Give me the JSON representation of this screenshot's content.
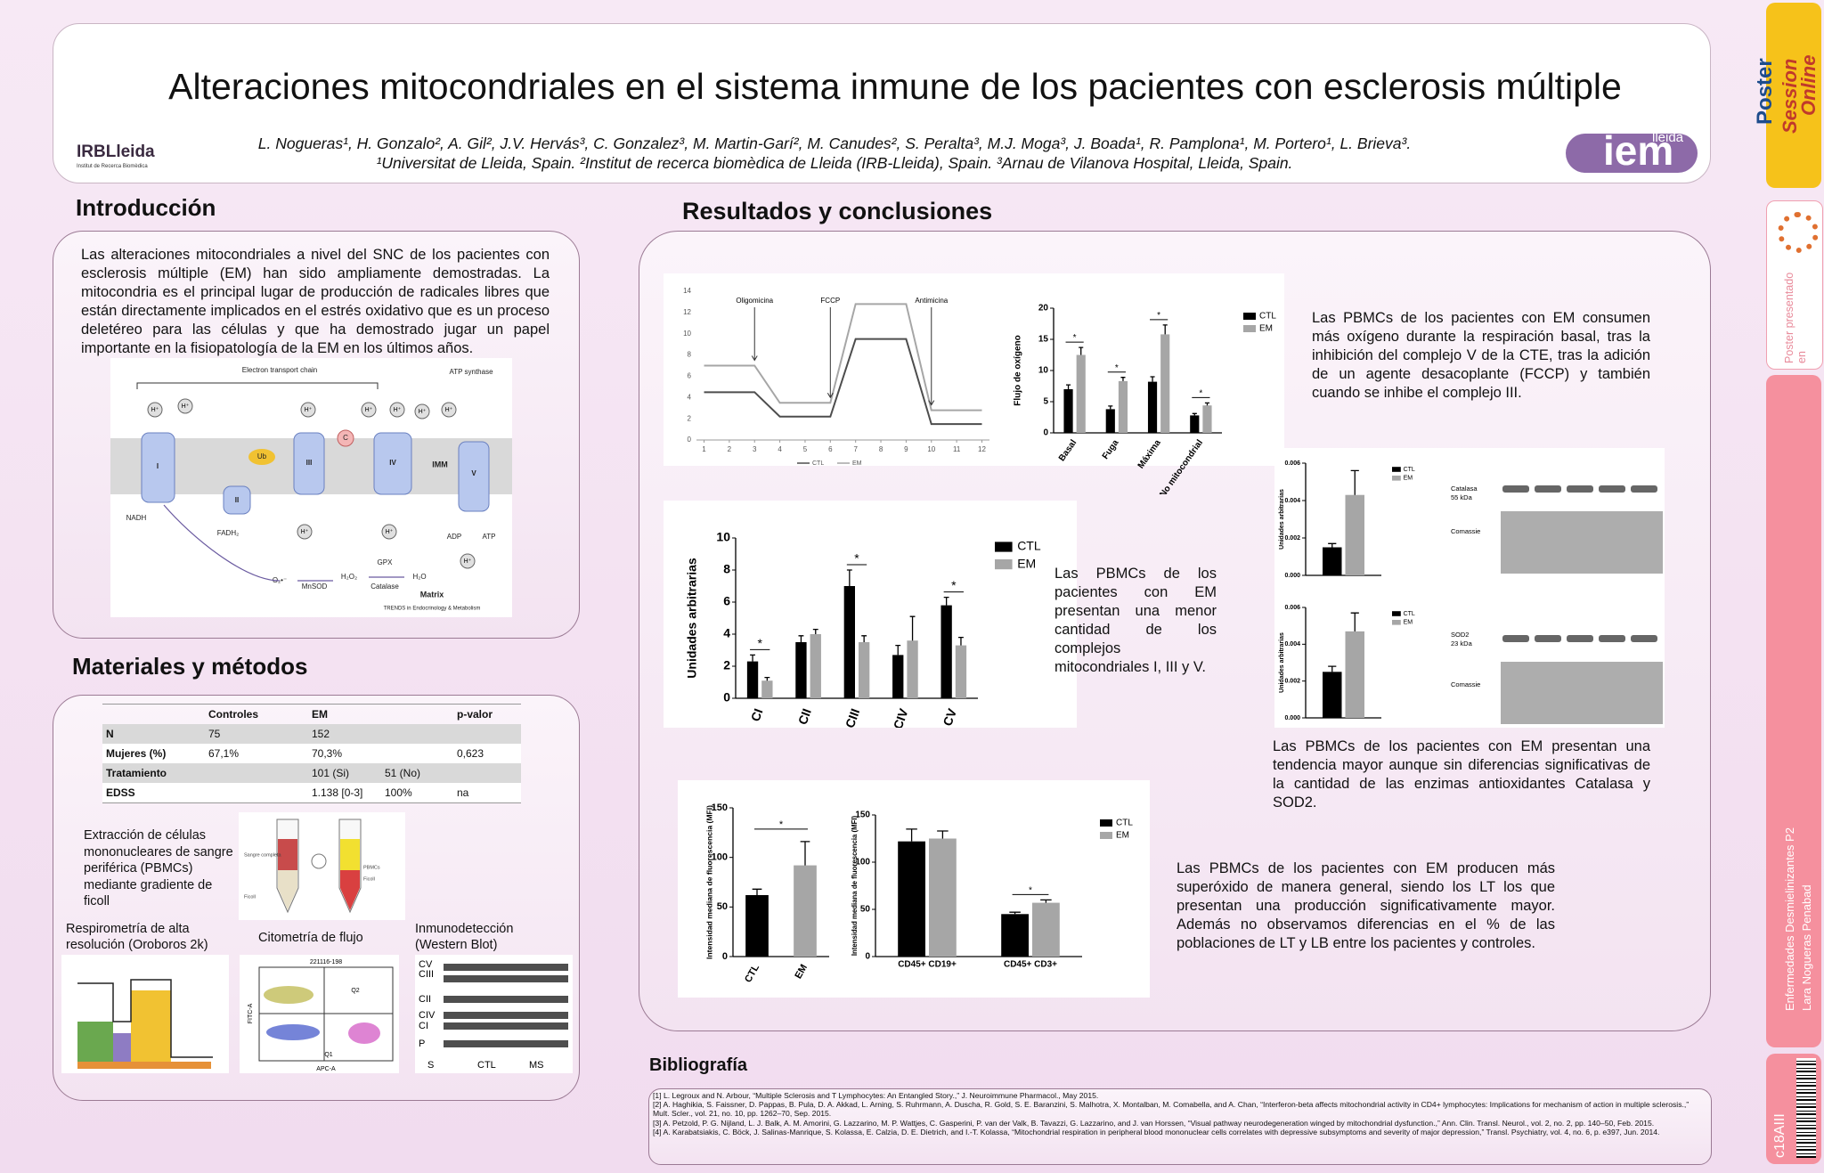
{
  "header": {
    "title": "Alteraciones mitocondriales en el sistema inmune de los pacientes con esclerosis múltiple",
    "authors": "L. Nogueras¹, H. Gonzalo², A. Gil², J.V. Hervás³, C. Gonzalez³, M. Martin-Garí², M. Canudes², S. Peralta³, M.J. Moga³, J. Boada¹, R. Pamplona¹, M. Portero¹, L. Brieva³.",
    "affiliations": "¹Universitat de Lleida, Spain. ²Institut de recerca biomèdica de Lleida (IRB-Lleida), Spain. ³Arnau de Vilanova Hospital, Lleida, Spain.",
    "logo_left": "IRBLleida",
    "logo_left_sub": "Institut de Recerca Biomèdica",
    "logo_right": "iem",
    "logo_right_sub": "lleida"
  },
  "intro": {
    "heading": "Introducción",
    "text": "Las alteraciones mitocondriales a nivel del SNC de los pacientes con esclerosis múltiple (EM) han sido ampliamente demostradas. La mitocondria es el principal lugar de producción de radicales libres que están directamente implicados en el estrés oxidativo que es un proceso deletéreo para las células y que ha demostrado jugar un papel importante en la fisiopatología de la EM en los últimos años.",
    "figure": {
      "labels": [
        "Electron transport chain",
        "ATP synthase",
        "I",
        "II",
        "III",
        "IV",
        "V",
        "Ub",
        "C",
        "IMM",
        "NADH",
        "FADH₂",
        "MnSOD",
        "Catalase",
        "GPX",
        "Matrix",
        "TRENDS in Endocrinology & Metabolism",
        "O₂•⁻",
        "H₂O₂",
        "H₂O",
        "ADP",
        "ATP"
      ],
      "proton": "H⁺"
    }
  },
  "methods": {
    "heading": "Materiales y métodos",
    "table": {
      "header": [
        null,
        "Controles",
        "EM",
        null,
        "p-valor"
      ],
      "rows": [
        [
          "N",
          "75",
          "152",
          null,
          null
        ],
        [
          "Mujeres (%)",
          "67,1%",
          "70,3%",
          null,
          "0,623"
        ],
        [
          "Tratamiento",
          null,
          "101 (Si)",
          "51 (No)",
          null
        ],
        [
          "EDSS",
          null,
          "1.138 [0-3]",
          "100%",
          "na"
        ]
      ]
    },
    "extraction": "Extracción de células mononucleares de sangre periférica (PBMCs) mediante gradiente de ficoll",
    "tube_labels": [
      "Sangre completa",
      "Ficoll",
      "PBMCs",
      "Ficoll"
    ],
    "respirometry": "Respirometría de alta resolución (Oroboros 2k)",
    "cytometry": "Citometría de flujo",
    "cytometry_labels": [
      "221116-198",
      "Q2",
      "Q1",
      "APC-A",
      "FITC-A"
    ],
    "western": "Inmunodetección (Western Blot)",
    "western_labels": [
      "CV",
      "CIII",
      "CII",
      "CIV",
      "CI",
      "P",
      "S",
      "CTL",
      "MS"
    ]
  },
  "results": {
    "heading": "Resultados y conclusiones",
    "texts": [
      "Las PBMCs de los pacientes con EM consumen más oxígeno durante la respiración basal, tras la inhibición del complejo V de la CTE, tras la adición de un agente desacoplante (FCCP) y también cuando se inhibe el complejo III.",
      "Las PBMCs de los pacientes con EM presentan una menor cantidad de los complejos mitocondriales I, III y V.",
      "Las PBMCs de los pacientes con EM presentan una tendencia mayor aunque sin diferencias significativas de la cantidad de las enzimas antioxidantes Catalasa y SOD2.",
      "Las PBMCs de los pacientes con EM producen más superóxido de manera general, siendo los LT los que presentan una producción significativamente mayor. Además no observamos diferencias en el % de las poblaciones de LT y LB entre los pacientes y controles."
    ],
    "blots": [
      {
        "labels": [
          "Catalasa",
          "55 kDa",
          "Comassie"
        ]
      },
      {
        "labels": [
          "SOD2",
          "23 kDa",
          "Comassie"
        ]
      }
    ],
    "charts": [
      {
        "type": "line",
        "x": [
          1,
          2,
          3,
          4,
          5,
          6,
          7,
          8,
          9,
          10,
          11,
          12
        ],
        "series": [
          {
            "name": "CTL",
            "color": "#4d4d4d",
            "values": [
              4.5,
              4.5,
              4.5,
              2.2,
              2.2,
              2.2,
              9.5,
              9.5,
              9.5,
              1.5,
              1.5,
              1.5
            ]
          },
          {
            "name": "EM",
            "color": "#a6a6a6",
            "values": [
              7,
              7,
              7,
              3.5,
              3.5,
              3.5,
              12.8,
              12.8,
              12.8,
              2.8,
              2.8,
              2.8
            ]
          }
        ],
        "xlim": [
          0.7,
          12.3
        ],
        "xticks": [
          1,
          2,
          3,
          4,
          5,
          6,
          7,
          8,
          9,
          10,
          11,
          12
        ],
        "ylim": [
          0,
          14
        ],
        "yticks": [
          0,
          2,
          4,
          6,
          8,
          10,
          12,
          14
        ],
        "annotations": [
          {
            "text": "Oligomicina",
            "x": 3
          },
          {
            "text": "FCCP",
            "x": 6
          },
          {
            "text": "Antimicina",
            "x": 10
          }
        ]
      },
      {
        "type": "bar",
        "categories": [
          "Basal",
          "Fuga",
          "Máxima",
          "No mitocondrial"
        ],
        "series": [
          {
            "name": "CTL",
            "color": "#000000",
            "values": [
              7,
              3.8,
              8.2,
              2.8
            ],
            "errors": [
              0.7,
              0.5,
              0.8,
              0.3
            ]
          },
          {
            "name": "EM",
            "color": "#a6a6a6",
            "values": [
              12.5,
              8.3,
              15.8,
              4.4
            ],
            "errors": [
              1.2,
              0.6,
              1.5,
              0.4
            ]
          }
        ],
        "ylim": [
          0,
          20
        ],
        "yticks": [
          0,
          5,
          10,
          15,
          20
        ],
        "ylabel": "Flujo de oxígeno",
        "significance": [
          "*",
          "*",
          "*",
          "*"
        ]
      },
      {
        "type": "bar",
        "categories": [
          "CI",
          "CII",
          "CIII",
          "CIV",
          "CV"
        ],
        "series": [
          {
            "name": "CTL",
            "color": "#000000",
            "values": [
              2.3,
              3.5,
              7.0,
              2.7,
              5.8
            ],
            "errors": [
              0.4,
              0.4,
              1.0,
              0.6,
              0.5
            ]
          },
          {
            "name": "EM",
            "color": "#a6a6a6",
            "values": [
              1.1,
              4.0,
              3.5,
              3.6,
              3.3
            ],
            "errors": [
              0.2,
              0.3,
              0.4,
              1.5,
              0.5
            ]
          }
        ],
        "ylim": [
          0,
          10
        ],
        "yticks": [
          0,
          2,
          4,
          6,
          8,
          10
        ],
        "ylabel": "Unidades arbitrarias",
        "significance": [
          "*",
          null,
          "*",
          null,
          "*"
        ]
      },
      {
        "type": "bar",
        "categories": [
          null
        ],
        "series": [
          {
            "name": "CTL",
            "color": "#000000",
            "values": [
              0.0015
            ],
            "errors": [
              0.0002
            ]
          },
          {
            "name": "EM",
            "color": "#a6a6a6",
            "values": [
              0.0043
            ],
            "errors": [
              0.0013
            ]
          }
        ],
        "ylim": [
          0,
          0.006
        ],
        "yticks": [
          {
            "value": 0,
            "label": "0.000"
          },
          0.002,
          0.004,
          0.006
        ],
        "ylabel": "Unidades arbitrarias"
      },
      {
        "type": "bar",
        "categories": [
          null
        ],
        "series": [
          {
            "name": "CTL",
            "color": "#000000",
            "values": [
              0.0025
            ],
            "errors": [
              0.0003
            ]
          },
          {
            "name": "EM",
            "color": "#a6a6a6",
            "values": [
              0.0047
            ],
            "errors": [
              0.001
            ]
          }
        ],
        "ylim": [
          0,
          0.006
        ],
        "yticks": [
          {
            "value": 0,
            "label": "0.000"
          },
          0.002,
          0.004,
          0.006
        ],
        "ylabel": "Unidades arbitrarias"
      },
      {
        "type": "bar",
        "categories": [
          "CTL",
          "EM"
        ],
        "series": [
          {
            "colors": [
              "#000000",
              "#a6a6a6"
            ],
            "values": [
              62,
              92
            ],
            "errors": [
              6,
              24
            ]
          }
        ],
        "ylim": [
          0,
          150
        ],
        "yticks": [
          0,
          50,
          100,
          150
        ],
        "ylabel": "Intensidad mediana de fluorescencia (MFI)",
        "significance": "*"
      },
      {
        "type": "bar",
        "categories": [
          "CD45+ CD19+",
          "CD45+ CD3+"
        ],
        "series": [
          {
            "name": "CTL",
            "color": "#000000",
            "values": [
              122,
              45
            ],
            "errors": [
              13,
              2
            ]
          },
          {
            "name": "EM",
            "color": "#a6a6a6",
            "values": [
              125,
              57
            ],
            "errors": [
              8,
              3
            ]
          }
        ],
        "ylim": [
          0,
          150
        ],
        "yticks": [
          0,
          50,
          100,
          150
        ],
        "ylabel": "Intensidad mediana de fluorescencia (MFI)",
        "significance": [
          null,
          "*"
        ]
      }
    ]
  },
  "bibliography": {
    "heading": "Bibliografía",
    "refs": [
      "[1] L. Legroux and N. Arbour, “Multiple Sclerosis and T Lymphocytes: An Entangled Story.,” J. Neuroimmune Pharmacol., May 2015.",
      "[2] A. Haghikia, S. Faissner, D. Pappas, B. Pula, D. A. Akkad, L. Arning, S. Ruhrmann, A. Duscha, R. Gold, S. E. Baranzini, S. Malhotra, X. Montalban, M. Comabella, and A. Chan, “Interferon-beta affects mitochondrial activity in CD4+ lymphocytes: Implications for mechanism of action in multiple sclerosis.,” Mult. Scler., vol. 21, no. 10, pp. 1262–70, Sep. 2015.",
      "[3] A. Petzold, P. G. Nijland, L. J. Balk, A. M. Amorini, G. Lazzarino, M. P. Wattjes, C. Gasperini, P. van der Valk, B. Tavazzi, G. Lazzarino, and J. van Horssen, “Visual pathway neurodegeneration winged by mitochondrial dysfunction.,” Ann. Clin. Transl. Neurol., vol. 2, no. 2, pp. 140–50, Feb. 2015.",
      "[4] A. Karabatsiakis, C. Böck, J. Salinas-Manrique, S. Kolassa, E. Calzia, D. E. Dietrich, and I.-T. Kolassa, “Mitochondrial respiration in peripheral blood mononuclear cells correlates with depressive subsymptoms and severity of major depression,” Transl. Psychiatry, vol. 4, no. 6, p. e397, Jun. 2014."
    ]
  },
  "sidebar": {
    "brand": [
      "Poster",
      "Session",
      "Online"
    ],
    "presented": "Poster presentado en",
    "session": "Enfermedades Desmielinizantes P2",
    "author": "Lara Nogueras Penabad",
    "code": "c18AIII"
  }
}
